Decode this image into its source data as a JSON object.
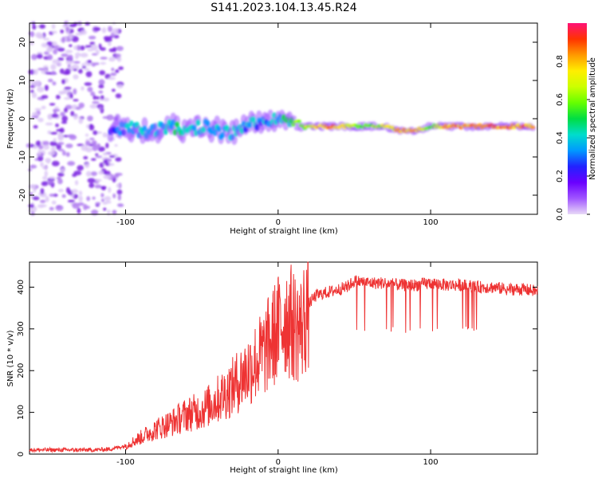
{
  "title": "S141.2023.104.13.45.R24",
  "colors": {
    "snr_line": "#ee3333",
    "spectrogram_base": "#8a2be2",
    "colorbar": [
      "#e8d9f7",
      "#a055ff",
      "#6a00ff",
      "#2222ff",
      "#0099ff",
      "#00ddcc",
      "#00dd44",
      "#66ff00",
      "#ccff00",
      "#ffee00",
      "#ff9900",
      "#ff3300",
      "#ff1177"
    ]
  },
  "chart_data": [
    {
      "type": "heatmap",
      "xlabel": "Height of straight line (km)",
      "ylabel": "Frequency (Hz)",
      "xlim": [
        -163,
        170
      ],
      "ylim": [
        -25,
        25
      ],
      "xticks": [
        -100,
        0,
        100
      ],
      "yticks": [
        -20,
        -10,
        0,
        10,
        20
      ],
      "colorbar": {
        "label": "Normalized spectral amplitude",
        "range": [
          0,
          1
        ],
        "ticks": [
          "0.0",
          "0.2",
          "0.4",
          "0.6",
          "0.8"
        ]
      },
      "ridge": {
        "x": [
          -110,
          -100,
          -90,
          -80,
          -70,
          -60,
          -50,
          -40,
          -30,
          -20,
          -10,
          0,
          10,
          20,
          30,
          40,
          50,
          60,
          70,
          80,
          90,
          100,
          110,
          120,
          130,
          140,
          150,
          160,
          168
        ],
        "freq": [
          -3,
          -2,
          -3,
          -3,
          -2,
          -4,
          -2,
          -3,
          -4,
          -2,
          -1,
          0,
          -1,
          -2,
          -2,
          -2,
          -2,
          -2,
          -2,
          -3,
          -3,
          -2,
          -2,
          -2,
          -2,
          -2,
          -2,
          -2,
          -2
        ],
        "amplitude": [
          0.15,
          0.3,
          0.4,
          0.35,
          0.4,
          0.45,
          0.35,
          0.3,
          0.4,
          0.35,
          0.3,
          0.4,
          0.6,
          0.75,
          0.9,
          0.95,
          0.7,
          0.55,
          0.8,
          0.85,
          0.9,
          0.55,
          0.9,
          0.95,
          0.95,
          0.95,
          0.95,
          0.95,
          0.95
        ]
      }
    },
    {
      "type": "line",
      "xlabel": "Height of straight line (km)",
      "ylabel": "SNR (10 * v/v)",
      "xlim": [
        -163,
        170
      ],
      "ylim": [
        0,
        460
      ],
      "xticks": [
        -100,
        0,
        100
      ],
      "yticks": [
        0,
        100,
        200,
        300,
        400
      ],
      "series": [
        {
          "x": [
            -163,
            -140,
            -120,
            -110,
            -100,
            -95,
            -90,
            -85,
            -80,
            -70,
            -60,
            -50,
            -40,
            -30,
            -20,
            -10,
            0,
            5,
            10,
            15,
            20,
            25,
            30,
            40,
            45,
            50,
            60,
            70,
            80,
            90,
            100,
            110,
            120,
            130,
            140,
            150,
            160,
            170
          ],
          "values": [
            10,
            10,
            10,
            12,
            20,
            30,
            40,
            50,
            60,
            75,
            95,
            105,
            130,
            160,
            200,
            240,
            300,
            330,
            310,
            300,
            360,
            380,
            385,
            395,
            400,
            415,
            410,
            410,
            405,
            405,
            410,
            405,
            405,
            400,
            400,
            395,
            395,
            390
          ]
        }
      ]
    }
  ]
}
